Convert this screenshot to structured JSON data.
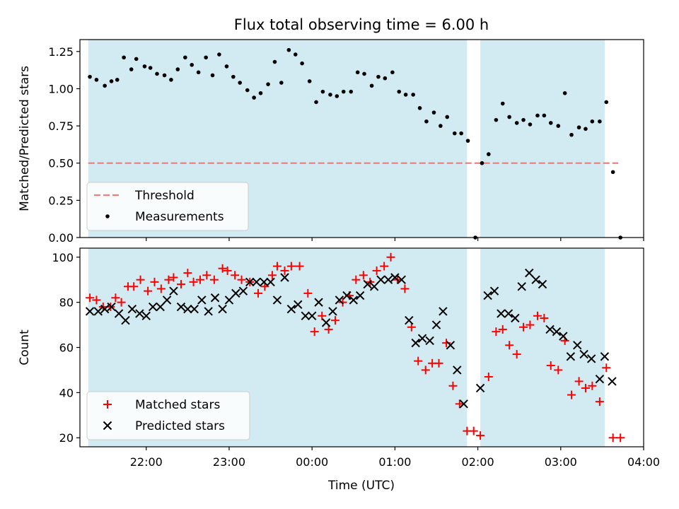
{
  "chart_data": {
    "title": "Flux total observing time = 6.00 h",
    "xlabel": "Time (UTC)",
    "x_tick_labels": [
      "22:00",
      "23:00",
      "00:00",
      "01:00",
      "02:00",
      "03:00",
      "04:00"
    ],
    "x_ticks_hours": [
      22,
      23,
      24,
      25,
      26,
      27,
      28
    ],
    "xlim_hours": [
      21.2,
      28.0
    ],
    "shaded_intervals_hours": [
      [
        21.3,
        25.87
      ],
      [
        26.03,
        27.53
      ]
    ],
    "shade_color": "#add8e6",
    "panels": [
      {
        "type": "scatter",
        "ylabel": "Matched/Predicted stars",
        "ylim": [
          0,
          1.33
        ],
        "y_ticks": [
          0.0,
          0.25,
          0.5,
          0.75,
          1.0,
          1.25
        ],
        "y_tick_labels": [
          "0.00",
          "0.25",
          "0.50",
          "0.75",
          "1.00",
          "1.25"
        ],
        "threshold": {
          "name": "Threshold",
          "value": 0.5,
          "x_range_hours": [
            21.3,
            28.0
          ],
          "color": "#f08080"
        },
        "series": [
          {
            "name": "Measurements",
            "marker": "dot",
            "color": "#000000",
            "points": [
              [
                21.32,
                1.08
              ],
              [
                21.4,
                1.06
              ],
              [
                21.5,
                1.02
              ],
              [
                21.58,
                1.05
              ],
              [
                21.65,
                1.06
              ],
              [
                21.73,
                1.21
              ],
              [
                21.82,
                1.13
              ],
              [
                21.88,
                1.2
              ],
              [
                21.98,
                1.15
              ],
              [
                22.05,
                1.14
              ],
              [
                22.13,
                1.1
              ],
              [
                22.22,
                1.09
              ],
              [
                22.3,
                1.06
              ],
              [
                22.38,
                1.13
              ],
              [
                22.47,
                1.21
              ],
              [
                22.55,
                1.16
              ],
              [
                22.63,
                1.11
              ],
              [
                22.72,
                1.21
              ],
              [
                22.8,
                1.09
              ],
              [
                22.88,
                1.23
              ],
              [
                22.97,
                1.15
              ],
              [
                23.05,
                1.08
              ],
              [
                23.13,
                1.04
              ],
              [
                23.22,
                0.99
              ],
              [
                23.3,
                0.94
              ],
              [
                23.38,
                0.97
              ],
              [
                23.47,
                1.03
              ],
              [
                23.55,
                1.18
              ],
              [
                23.63,
                1.04
              ],
              [
                23.72,
                1.26
              ],
              [
                23.8,
                1.23
              ],
              [
                23.88,
                1.17
              ],
              [
                23.97,
                1.05
              ],
              [
                24.05,
                0.91
              ],
              [
                24.13,
                0.98
              ],
              [
                24.22,
                0.96
              ],
              [
                24.3,
                0.95
              ],
              [
                24.38,
                0.98
              ],
              [
                24.47,
                0.98
              ],
              [
                24.55,
                1.11
              ],
              [
                24.63,
                1.1
              ],
              [
                24.72,
                1.02
              ],
              [
                24.8,
                1.08
              ],
              [
                24.88,
                1.07
              ],
              [
                24.97,
                1.11
              ],
              [
                25.05,
                0.98
              ],
              [
                25.13,
                0.96
              ],
              [
                25.22,
                0.96
              ],
              [
                25.3,
                0.87
              ],
              [
                25.38,
                0.78
              ],
              [
                25.47,
                0.84
              ],
              [
                25.55,
                0.75
              ],
              [
                25.63,
                0.81
              ],
              [
                25.72,
                0.7
              ],
              [
                25.8,
                0.7
              ],
              [
                25.88,
                0.65
              ],
              [
                25.97,
                0.0
              ],
              [
                26.05,
                0.5
              ],
              [
                26.13,
                0.56
              ],
              [
                26.22,
                0.79
              ],
              [
                26.3,
                0.9
              ],
              [
                26.38,
                0.81
              ],
              [
                26.47,
                0.77
              ],
              [
                26.55,
                0.79
              ],
              [
                26.63,
                0.76
              ],
              [
                26.72,
                0.82
              ],
              [
                26.8,
                0.82
              ],
              [
                26.88,
                0.77
              ],
              [
                26.97,
                0.75
              ],
              [
                27.05,
                0.97
              ],
              [
                27.13,
                0.69
              ],
              [
                27.22,
                0.74
              ],
              [
                27.3,
                0.73
              ],
              [
                27.38,
                0.78
              ],
              [
                27.47,
                0.78
              ],
              [
                27.55,
                0.91
              ],
              [
                27.63,
                0.44
              ],
              [
                27.72,
                0.0
              ]
            ]
          }
        ],
        "legend": {
          "position": "lower-left",
          "entries": [
            "Threshold",
            "Measurements"
          ]
        }
      },
      {
        "type": "scatter",
        "ylabel": "Count",
        "ylim": [
          16,
          104
        ],
        "y_ticks": [
          20,
          40,
          60,
          80,
          100
        ],
        "y_tick_labels": [
          "20",
          "40",
          "60",
          "80",
          "100"
        ],
        "series": [
          {
            "name": "Matched stars",
            "marker": "plus",
            "color": "#ff0000",
            "points": [
              [
                21.32,
                82
              ],
              [
                21.4,
                81
              ],
              [
                21.48,
                78
              ],
              [
                21.57,
                78
              ],
              [
                21.63,
                82
              ],
              [
                21.7,
                80
              ],
              [
                21.78,
                87
              ],
              [
                21.85,
                87
              ],
              [
                21.93,
                90
              ],
              [
                22.02,
                85
              ],
              [
                22.1,
                89
              ],
              [
                22.18,
                86
              ],
              [
                22.27,
                90
              ],
              [
                22.33,
                91
              ],
              [
                22.42,
                88
              ],
              [
                22.5,
                93
              ],
              [
                22.57,
                89
              ],
              [
                22.65,
                90
              ],
              [
                22.73,
                92
              ],
              [
                22.82,
                90
              ],
              [
                22.92,
                95
              ],
              [
                22.98,
                94
              ],
              [
                23.07,
                92
              ],
              [
                23.15,
                90
              ],
              [
                23.25,
                89
              ],
              [
                23.35,
                84
              ],
              [
                23.43,
                87
              ],
              [
                23.52,
                92
              ],
              [
                23.58,
                96
              ],
              [
                23.67,
                94
              ],
              [
                23.75,
                96
              ],
              [
                23.85,
                96
              ],
              [
                23.95,
                84
              ],
              [
                24.03,
                67
              ],
              [
                24.12,
                74
              ],
              [
                24.2,
                68
              ],
              [
                24.28,
                72
              ],
              [
                24.37,
                80
              ],
              [
                24.45,
                83
              ],
              [
                24.53,
                90
              ],
              [
                24.62,
                92
              ],
              [
                24.7,
                89
              ],
              [
                24.78,
                94
              ],
              [
                24.87,
                96
              ],
              [
                24.95,
                100
              ],
              [
                25.03,
                90
              ],
              [
                25.12,
                86
              ],
              [
                25.2,
                69
              ],
              [
                25.28,
                54
              ],
              [
                25.37,
                50
              ],
              [
                25.45,
                53
              ],
              [
                25.53,
                53
              ],
              [
                25.62,
                62
              ],
              [
                25.7,
                43
              ],
              [
                25.78,
                35
              ],
              [
                25.87,
                23
              ],
              [
                25.95,
                23
              ],
              [
                26.03,
                21
              ],
              [
                26.13,
                47
              ],
              [
                26.22,
                67
              ],
              [
                26.3,
                68
              ],
              [
                26.38,
                61
              ],
              [
                26.47,
                57
              ],
              [
                26.55,
                69
              ],
              [
                26.63,
                70
              ],
              [
                26.72,
                74
              ],
              [
                26.8,
                73
              ],
              [
                26.88,
                52
              ],
              [
                26.97,
                50
              ],
              [
                27.05,
                63
              ],
              [
                27.13,
                39
              ],
              [
                27.22,
                45
              ],
              [
                27.3,
                42
              ],
              [
                27.38,
                43
              ],
              [
                27.47,
                36
              ],
              [
                27.55,
                51
              ],
              [
                27.63,
                20
              ],
              [
                27.72,
                20
              ]
            ]
          },
          {
            "name": "Predicted stars",
            "marker": "x",
            "color": "#000000",
            "points": [
              [
                21.32,
                76
              ],
              [
                21.42,
                76
              ],
              [
                21.5,
                77
              ],
              [
                21.58,
                78
              ],
              [
                21.67,
                75
              ],
              [
                21.75,
                72
              ],
              [
                21.83,
                77
              ],
              [
                21.92,
                75
              ],
              [
                22.0,
                74
              ],
              [
                22.08,
                78
              ],
              [
                22.17,
                78
              ],
              [
                22.25,
                81
              ],
              [
                22.33,
                85
              ],
              [
                22.42,
                78
              ],
              [
                22.5,
                77
              ],
              [
                22.58,
                77
              ],
              [
                22.67,
                81
              ],
              [
                22.75,
                76
              ],
              [
                22.83,
                82
              ],
              [
                22.92,
                77
              ],
              [
                23.0,
                81
              ],
              [
                23.08,
                84
              ],
              [
                23.17,
                85
              ],
              [
                23.25,
                89
              ],
              [
                23.33,
                89
              ],
              [
                23.42,
                89
              ],
              [
                23.5,
                89
              ],
              [
                23.58,
                81
              ],
              [
                23.67,
                91
              ],
              [
                23.75,
                77
              ],
              [
                23.83,
                79
              ],
              [
                23.92,
                74
              ],
              [
                24.0,
                74
              ],
              [
                24.08,
                80
              ],
              [
                24.17,
                71
              ],
              [
                24.25,
                76
              ],
              [
                24.33,
                81
              ],
              [
                24.42,
                83
              ],
              [
                24.5,
                81
              ],
              [
                24.58,
                83
              ],
              [
                24.67,
                88
              ],
              [
                24.75,
                87
              ],
              [
                24.83,
                90
              ],
              [
                24.92,
                90
              ],
              [
                25.0,
                91
              ],
              [
                25.08,
                90
              ],
              [
                25.17,
                72
              ],
              [
                25.25,
                62
              ],
              [
                25.33,
                64
              ],
              [
                25.42,
                63
              ],
              [
                25.5,
                70
              ],
              [
                25.58,
                76
              ],
              [
                25.67,
                61
              ],
              [
                25.75,
                50
              ],
              [
                25.83,
                35
              ],
              [
                26.03,
                42
              ],
              [
                26.12,
                83
              ],
              [
                26.2,
                85
              ],
              [
                26.28,
                75
              ],
              [
                26.37,
                75
              ],
              [
                26.45,
                73
              ],
              [
                26.53,
                87
              ],
              [
                26.62,
                93
              ],
              [
                26.7,
                90
              ],
              [
                26.78,
                88
              ],
              [
                26.87,
                68
              ],
              [
                26.95,
                67
              ],
              [
                27.03,
                65
              ],
              [
                27.12,
                56
              ],
              [
                27.2,
                61
              ],
              [
                27.28,
                57
              ],
              [
                27.37,
                55
              ],
              [
                27.47,
                46
              ],
              [
                27.53,
                56
              ],
              [
                27.62,
                45
              ]
            ]
          }
        ],
        "legend": {
          "position": "lower-left",
          "entries": [
            "Matched stars",
            "Predicted stars"
          ]
        }
      }
    ]
  }
}
